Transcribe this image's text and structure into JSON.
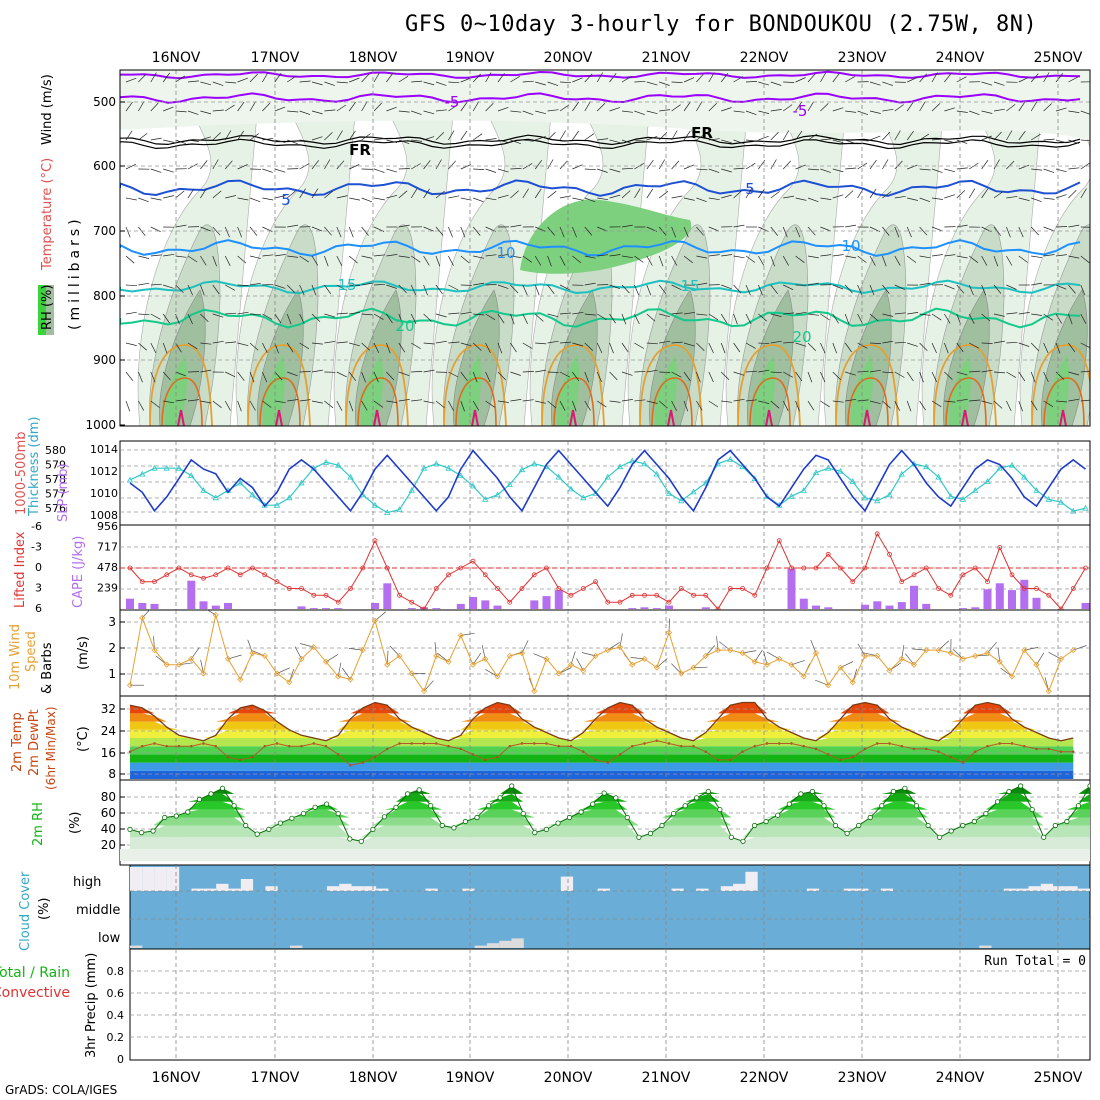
{
  "title": "GFS 0~10day 3-hourly for BONDOUKOU (2.75W, 8N)",
  "credit": "GrADS: COLA/IGES",
  "dates": [
    "16NOV",
    "17NOV",
    "18NOV",
    "19NOV",
    "20NOV",
    "21NOV",
    "22NOV",
    "23NOV",
    "24NOV",
    "25NOV"
  ],
  "colors": {
    "rh_fill": [
      "#e6f2e6",
      "#c8dcc8",
      "#9fbf9f",
      "#7dd07d",
      "#3cd23c"
    ],
    "temp_lines": [
      "#9b00ff",
      "#000000",
      "#1e50d2",
      "#1e90ff",
      "#1ec0c0",
      "#14c88c",
      "#e6a032",
      "#dc6e1e",
      "#e0147c"
    ],
    "slp": "#1e3cc8",
    "thickness": "#32c8c8",
    "lifted_index": "#e03232",
    "cape": "#b46ef0",
    "wind10m": "#e6a032",
    "temp_bands": [
      "#1e64dc",
      "#3c9ae6",
      "#14b414",
      "#50d250",
      "#b4e650",
      "#f0f03c",
      "#f0c814",
      "#f08c14",
      "#e6460a"
    ],
    "rh2m": "#14b414",
    "cloud_bg": "#6aaed8",
    "cloud_bar": "#f0eef2",
    "precip": "#000000"
  },
  "panels": {
    "upper": {
      "labels": {
        "rh": "RH (%)",
        "temp": "Temperature (°C)",
        "wind": "Wind (m/s)",
        "ylabel": "(millibars)"
      },
      "ticks": [
        "500",
        "600",
        "700",
        "800",
        "900",
        "1000"
      ],
      "contour_labels": [
        "-5",
        "FR",
        "5",
        "10",
        "15",
        "20",
        "-5",
        "FR",
        "5",
        "10",
        "15",
        "20"
      ]
    },
    "slp": {
      "label_left": "1000-500mb Thickness (dm)",
      "label_right": "SLP (mb)",
      "ticks_left": [
        "580",
        "579",
        "578",
        "577",
        "576"
      ],
      "ticks_right": [
        "1014",
        "1012",
        "1010",
        "1008"
      ]
    },
    "li": {
      "label_left": "Lifted Index",
      "label_right": "CAPE (J/kg)",
      "ticks_left": [
        "-6",
        "-3",
        "0",
        "3",
        "6"
      ],
      "ticks_right": [
        "956",
        "717",
        "478",
        "239"
      ]
    },
    "wind": {
      "label": "10m Wind Speed & Barbs",
      "unit": "(m/s)",
      "ticks": [
        "3",
        "2",
        "1"
      ]
    },
    "temp": {
      "label": "2m Temp 2m DewPt (6hr Min/Max)",
      "unit": "(°C)",
      "ticks": [
        "32",
        "24",
        "16",
        "8"
      ]
    },
    "rh2m": {
      "label": "2m RH",
      "unit": "(%)",
      "ticks": [
        "80",
        "60",
        "40",
        "20"
      ]
    },
    "cloud": {
      "label": "Cloud Cover",
      "unit": "(%)",
      "levels": [
        "high",
        "middle",
        "low"
      ]
    },
    "precip": {
      "label_total": "Total / Rain",
      "label_conv": "Convective",
      "ylabel": "3hr Precip (mm)",
      "ticks": [
        "0.8",
        "0.6",
        "0.4",
        "0.2",
        "0"
      ],
      "run_total": "Run Total = 0"
    }
  },
  "chart_data": [
    {
      "type": "line",
      "title": "SLP (mb) & 1000-500mb Thickness (dm)",
      "x_unit": "3-hourly steps from 15NOV 12Z",
      "series": [
        {
          "name": "SLP (mb)",
          "axis": "right",
          "ylim": [
            1006.5,
            1014.5
          ],
          "values": [
            1010.5,
            1009.5,
            1007.5,
            1009,
            1011,
            1013,
            1012,
            1011.5,
            1009.5,
            1011,
            1010,
            1008,
            1009.5,
            1012,
            1013,
            1012,
            1010.5,
            1009,
            1007.5,
            1009.5,
            1012,
            1013.5,
            1012,
            1010.5,
            1009,
            1007.5,
            1009,
            1012,
            1014,
            1012.5,
            1011,
            1009,
            1007.5,
            1010,
            1012.5,
            1014,
            1012.5,
            1011,
            1009.5,
            1008,
            1010,
            1012.5,
            1014,
            1012.5,
            1011,
            1009,
            1007.5,
            1010,
            1013,
            1014,
            1012.5,
            1011,
            1009,
            1008,
            1010,
            1012,
            1013.5,
            1013,
            1011,
            1009,
            1007.5,
            1010,
            1012.5,
            1014,
            1012.5,
            1010.5,
            1009,
            1008,
            1010,
            1012,
            1013,
            1012.5,
            1011,
            1009,
            1008,
            1010,
            1012,
            1013,
            1012
          ]
        },
        {
          "name": "1000-500mb Thickness (dm)",
          "axis": "left",
          "ylim": [
            575.5,
            580.5
          ],
          "values": [
            578.2,
            578.6,
            579,
            579,
            579,
            578.5,
            577.5,
            577,
            577.5,
            578,
            577.2,
            576.5,
            576.5,
            577,
            578,
            579,
            579.4,
            579.2,
            578.4,
            577.2,
            576.5,
            576,
            576.2,
            577.5,
            579,
            579.3,
            579,
            578.5,
            577.8,
            576.9,
            577.2,
            577.9,
            578.9,
            579.3,
            579.1,
            578.4,
            577.6,
            577,
            577.3,
            578.4,
            579.1,
            579.5,
            579.3,
            578.6,
            577.3,
            576.8,
            577.4,
            578,
            579.3,
            579.6,
            579.1,
            578.3,
            577.1,
            576.5,
            577.1,
            577.5,
            578.7,
            579,
            578.8,
            578.1,
            577,
            576.8,
            577.2,
            578.6,
            579.3,
            579.1,
            578.4,
            577.1,
            576.9,
            577.5,
            578.1,
            579,
            579.2,
            578.4,
            577.5,
            576.9,
            576.7,
            576.1,
            576.3
          ]
        }
      ]
    },
    {
      "type": "bar",
      "title": "Lifted Index & CAPE (J/kg)",
      "series": [
        {
          "name": "Lifted Index",
          "type": "line",
          "ylim": [
            6,
            -6
          ],
          "values": [
            0,
            2,
            2,
            1,
            0,
            1,
            1.5,
            1,
            0,
            1,
            0,
            1,
            2,
            3,
            3,
            4,
            4,
            5,
            3,
            0,
            -4,
            0,
            4,
            5,
            6,
            3,
            1,
            0,
            -1,
            1,
            3,
            5,
            3,
            1,
            0,
            3,
            4,
            3,
            2,
            5,
            5,
            4,
            4,
            4,
            5,
            3,
            4,
            4,
            6,
            3,
            3,
            4,
            0,
            -4,
            0,
            0,
            0,
            -2,
            0,
            2,
            0,
            -5,
            -2,
            2,
            1,
            0,
            3,
            4,
            1,
            0,
            2,
            -3,
            1,
            3,
            3,
            4,
            6,
            3,
            0
          ]
        },
        {
          "name": "CAPE (J/kg)",
          "values": [
            120,
            70,
            60,
            0,
            0,
            330,
            90,
            40,
            70,
            0,
            0,
            0,
            0,
            0,
            30,
            10,
            10,
            10,
            0,
            0,
            70,
            300,
            0,
            10,
            20,
            10,
            0,
            60,
            140,
            100,
            40,
            0,
            0,
            100,
            150,
            220,
            0,
            0,
            0,
            0,
            0,
            10,
            20,
            10,
            40,
            0,
            0,
            20,
            0,
            0,
            0,
            0,
            0,
            0,
            470,
            120,
            40,
            20,
            0,
            0,
            50,
            90,
            40,
            80,
            270,
            60,
            0,
            0,
            10,
            20,
            230,
            300,
            220,
            340,
            130,
            0,
            0,
            0,
            70,
            110
          ]
        }
      ]
    },
    {
      "type": "line",
      "title": "10m Wind Speed (m/s)",
      "ylim": [
        0.5,
        3.3
      ],
      "values": [
        0.8,
        3.1,
        2,
        1.5,
        1.5,
        1.7,
        1.2,
        3.2,
        1.7,
        1,
        1.9,
        1.8,
        1.2,
        0.9,
        1.7,
        2.1,
        1.6,
        1.1,
        1,
        2,
        3,
        1.5,
        1.8,
        1.2,
        0.6,
        1.8,
        1.6,
        2.5,
        1.5,
        1.7,
        1.1,
        1.8,
        1.9,
        0.6,
        1.7,
        1.2,
        1.5,
        1.3,
        1.8,
        2,
        2.1,
        1.5,
        1.7,
        1.4,
        2.6,
        1.2,
        1.4,
        1.8,
        2,
        2,
        1.9,
        1.6,
        1.5,
        1.7,
        1.5,
        1.1,
        1.9,
        0.8,
        1.4,
        0.9,
        1.8,
        1.8,
        1.3,
        1.7,
        1.5,
        2,
        2,
        1.9,
        1.7,
        1.8,
        1.9,
        1.6,
        1.1,
        2,
        1.5,
        0.6,
        1.7,
        2
      ]
    },
    {
      "type": "line",
      "title": "2m Temp & DewPt (°C)",
      "ylim": [
        6,
        36
      ],
      "series": [
        {
          "name": "2m Temp",
          "values": [
            33,
            32,
            29,
            25,
            22,
            21,
            20,
            22,
            28,
            32,
            33,
            31,
            27,
            24,
            22,
            21,
            20,
            22,
            28,
            32,
            34,
            33,
            28,
            25,
            23,
            21,
            20,
            22,
            28,
            32,
            34,
            33,
            28,
            25,
            23,
            21,
            20,
            23,
            28,
            32,
            34,
            33,
            28,
            25,
            23,
            21,
            20,
            23,
            28,
            33,
            34,
            34,
            28,
            25,
            23,
            21,
            20,
            23,
            28,
            33,
            34,
            33,
            28,
            25,
            23,
            21,
            20,
            23,
            28,
            33,
            34,
            33,
            28,
            25,
            23,
            21,
            20,
            21
          ]
        },
        {
          "name": "2m DewPt",
          "values": [
            16,
            18,
            19,
            18,
            18,
            18,
            19,
            18,
            14,
            13,
            14,
            18,
            19,
            18,
            18,
            19,
            18,
            15,
            11,
            12,
            14,
            17,
            19,
            19,
            19,
            19,
            18,
            17,
            15,
            13,
            14,
            18,
            19,
            19,
            19,
            18,
            18,
            16,
            13,
            12,
            15,
            18,
            19,
            20,
            19,
            18,
            18,
            16,
            13,
            13,
            16,
            18,
            19,
            19,
            19,
            18,
            17,
            15,
            13,
            14,
            17,
            19,
            19,
            18,
            17,
            17,
            16,
            14,
            12,
            16,
            18,
            19,
            19,
            18,
            17,
            17,
            16,
            16
          ]
        }
      ]
    },
    {
      "type": "area",
      "title": "2m RH (%)",
      "ylim": [
        0,
        100
      ],
      "values": [
        40,
        36,
        38,
        55,
        57,
        62,
        78,
        85,
        92,
        70,
        45,
        34,
        40,
        48,
        54,
        60,
        68,
        72,
        60,
        28,
        25,
        40,
        56,
        68,
        85,
        90,
        70,
        45,
        42,
        50,
        55,
        70,
        80,
        95,
        60,
        36,
        40,
        48,
        55,
        62,
        72,
        86,
        80,
        55,
        30,
        35,
        45,
        60,
        70,
        80,
        88,
        65,
        30,
        25,
        45,
        50,
        58,
        72,
        85,
        88,
        70,
        45,
        35,
        45,
        55,
        70,
        88,
        92,
        70,
        45,
        30,
        38,
        45,
        50,
        60,
        75,
        88,
        95,
        65,
        30,
        45,
        50,
        70,
        95
      ]
    },
    {
      "type": "bar",
      "title": "Cloud Cover (%)",
      "series": [
        {
          "name": "high",
          "values": [
            100,
            100,
            100,
            100,
            0,
            10,
            10,
            30,
            10,
            50,
            0,
            20,
            0,
            0,
            0,
            0,
            20,
            30,
            20,
            20,
            10,
            0,
            0,
            0,
            10,
            0,
            0,
            10,
            0,
            0,
            0,
            0,
            0,
            0,
            0,
            60,
            0,
            0,
            10,
            0,
            0,
            0,
            0,
            0,
            10,
            0,
            10,
            0,
            20,
            30,
            80,
            0,
            0,
            0,
            0,
            10,
            0,
            0,
            10,
            10,
            0,
            10,
            0,
            0,
            0,
            0,
            0,
            0,
            0,
            0,
            0,
            10,
            10,
            20,
            30,
            20,
            20,
            10,
            10
          ]
        },
        {
          "name": "middle",
          "values": [
            0
          ]
        },
        {
          "name": "low",
          "values": [
            10,
            0,
            0,
            0,
            0,
            0,
            0,
            0,
            0,
            0,
            0,
            0,
            0,
            10,
            0,
            0,
            0,
            0,
            0,
            0,
            0,
            0,
            0,
            0,
            0,
            0,
            0,
            0,
            10,
            20,
            30,
            40,
            0,
            0,
            0,
            0,
            0,
            0,
            0,
            0,
            0,
            0,
            0,
            0,
            0,
            0,
            0,
            0,
            0,
            0,
            0,
            0,
            0,
            0,
            0,
            0,
            0,
            0,
            0,
            0,
            0,
            0,
            0,
            0,
            0,
            0,
            0,
            0,
            0,
            10,
            0,
            0,
            0,
            0,
            0,
            0,
            0,
            0,
            0
          ]
        }
      ]
    },
    {
      "type": "bar",
      "title": "3hr Precip (mm)",
      "ylim": [
        0,
        1
      ],
      "values": []
    }
  ]
}
